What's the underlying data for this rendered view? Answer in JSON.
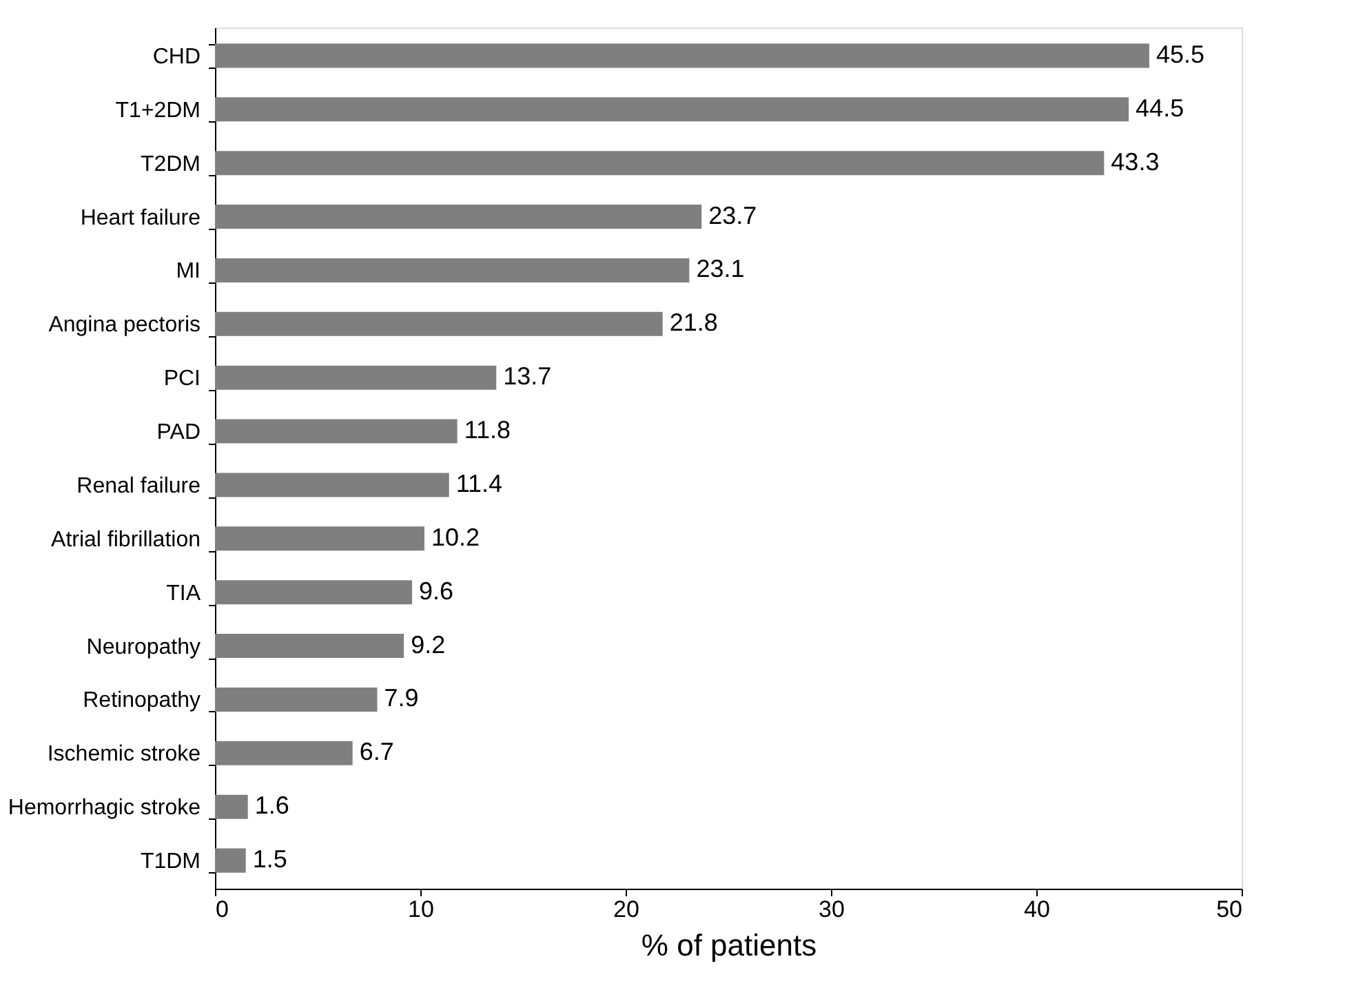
{
  "chart_data": {
    "type": "bar",
    "orientation": "horizontal",
    "xlabel": "% of patients",
    "categories": [
      "CHD",
      "T1+2DM",
      "T2DM",
      "Heart failure",
      "MI",
      "Angina pectoris",
      "PCI",
      "PAD",
      "Renal failure",
      "Atrial fibrillation",
      "TIA",
      "Neuropathy",
      "Retinopathy",
      "Ischemic stroke",
      "Hemorrhagic stroke",
      "T1DM"
    ],
    "values": [
      45.5,
      44.5,
      43.3,
      23.7,
      23.1,
      21.8,
      13.7,
      11.8,
      11.4,
      10.2,
      9.6,
      9.2,
      7.9,
      6.7,
      1.6,
      1.5
    ],
    "color": "#7f7f7f",
    "xlim": [
      0,
      50
    ],
    "xticks": [
      0,
      10,
      20,
      30,
      40,
      50
    ],
    "data_labels": true,
    "grid": false
  }
}
